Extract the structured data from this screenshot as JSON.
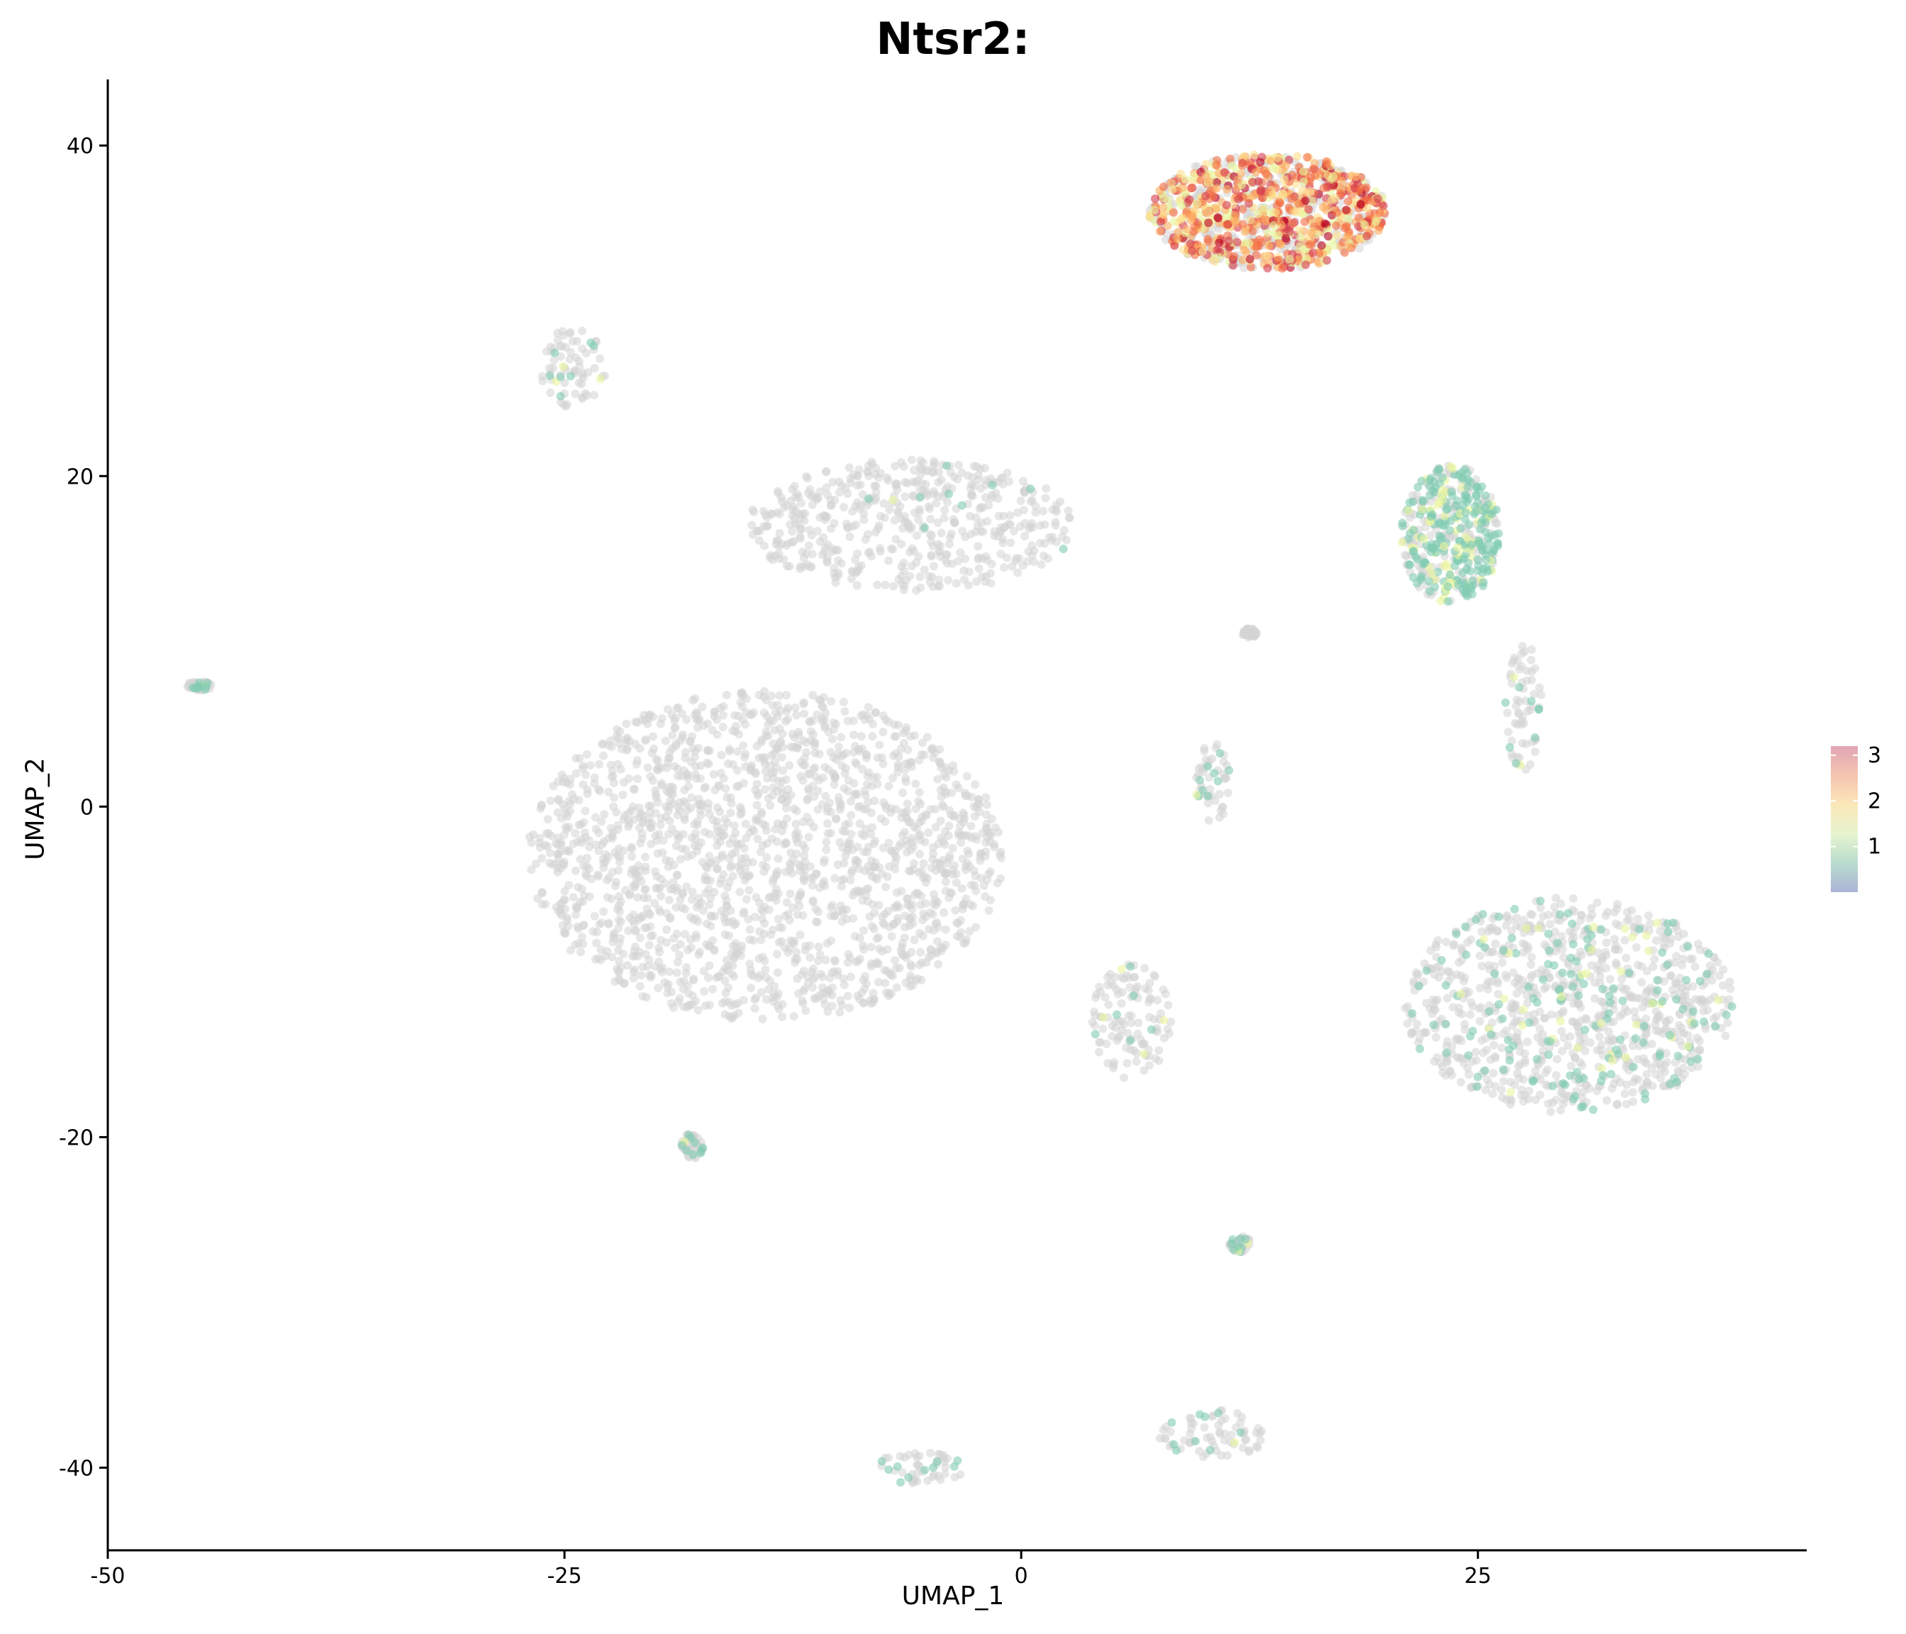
{
  "chart_data": {
    "type": "scatter",
    "title": "Ntsr2:",
    "xlabel": "UMAP_1",
    "ylabel": "UMAP_2",
    "xlim": [
      -50,
      43
    ],
    "ylim": [
      -45,
      44
    ],
    "xticks": [
      -50,
      -25,
      0,
      25
    ],
    "yticks": [
      -40,
      -20,
      0,
      20,
      40
    ],
    "grid": false,
    "legend_position": "right",
    "colorbar": {
      "ticks": [
        1,
        2,
        3
      ],
      "range": [
        0,
        3.2
      ],
      "colors": [
        "#abb3d6",
        "#b9dcce",
        "#e6f4cf",
        "#fbe7b8",
        "#f5c4b0",
        "#e0a6b4"
      ]
    },
    "background_color": "#d3d3d3",
    "expression_colors": [
      "#80ccb2",
      "#e9f59e",
      "#fde08d",
      "#fdae61",
      "#f46d43",
      "#d53e4f",
      "#b8001f"
    ],
    "clusters": [
      {
        "cx": 13.5,
        "cy": 36,
        "rx": 6.5,
        "ry": 3.5,
        "expression": "high"
      },
      {
        "cx": 23.5,
        "cy": 16.5,
        "rx": 2.7,
        "ry": 4.2,
        "expression": "mid"
      },
      {
        "cx": 30,
        "cy": -12,
        "rx": 9,
        "ry": 6.5,
        "expression": "low"
      },
      {
        "cx": -14,
        "cy": -3,
        "rx": 13,
        "ry": 10,
        "expression": "none"
      },
      {
        "cx": -6,
        "cy": 17,
        "rx": 9,
        "ry": 4,
        "expression": "sparse"
      },
      {
        "cx": 6,
        "cy": -13,
        "rx": 2.2,
        "ry": 3.5,
        "expression": "sparse"
      },
      {
        "cx": -24.5,
        "cy": 26.5,
        "rx": 1.8,
        "ry": 2.5,
        "expression": "sparse"
      },
      {
        "cx": 10.5,
        "cy": 1.5,
        "rx": 1,
        "ry": 2.5,
        "expression": "sparse"
      },
      {
        "cx": 10.5,
        "cy": -38,
        "rx": 3,
        "ry": 1.5,
        "expression": "sparse"
      },
      {
        "cx": -5.5,
        "cy": -40,
        "rx": 2.5,
        "ry": 1,
        "expression": "sparse"
      },
      {
        "cx": 27.5,
        "cy": 6,
        "rx": 1,
        "ry": 4,
        "expression": "sparse"
      },
      {
        "cx": -45,
        "cy": 7.3,
        "rx": 0.7,
        "ry": 0.3,
        "expression": "sparse"
      },
      {
        "cx": -18,
        "cy": -20.5,
        "rx": 0.6,
        "ry": 0.8,
        "expression": "sparse"
      },
      {
        "cx": 12,
        "cy": -26.5,
        "rx": 0.6,
        "ry": 0.5,
        "expression": "sparse"
      },
      {
        "cx": 12.5,
        "cy": 10.5,
        "rx": 0.4,
        "ry": 0.3,
        "expression": "none"
      }
    ]
  }
}
